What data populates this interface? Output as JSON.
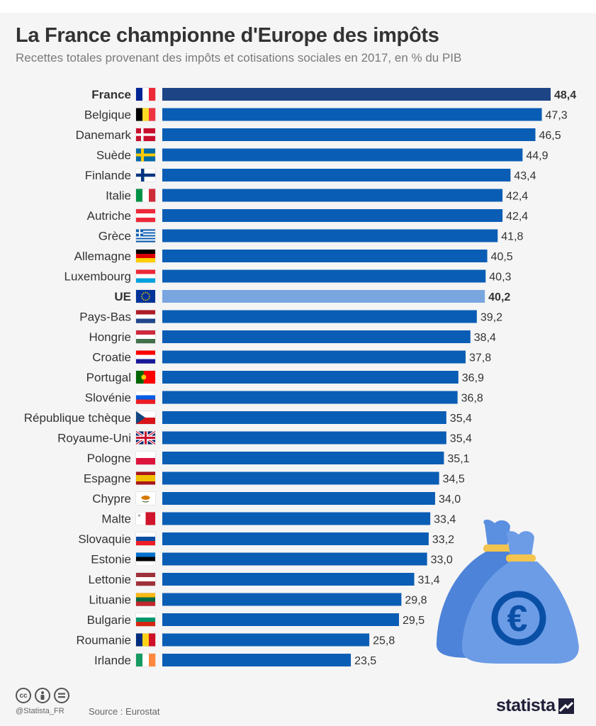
{
  "header": {
    "title": "La France championne d'Europe des impôts",
    "subtitle": "Recettes totales provenant des impôts et cotisations sociales en 2017, en % du PIB"
  },
  "chart_data": {
    "type": "bar",
    "orientation": "horizontal",
    "title": "La France championne d'Europe des impôts",
    "subtitle": "Recettes totales provenant des impôts et cotisations sociales en 2017, en % du PIB",
    "categories": [
      "France",
      "Belgique",
      "Danemark",
      "Suède",
      "Finlande",
      "Italie",
      "Autriche",
      "Grèce",
      "Allemagne",
      "Luxembourg",
      "UE",
      "Pays-Bas",
      "Hongrie",
      "Croatie",
      "Portugal",
      "Slovénie",
      "République tchèque",
      "Royaume-Uni",
      "Pologne",
      "Espagne",
      "Chypre",
      "Malte",
      "Slovaquie",
      "Estonie",
      "Lettonie",
      "Lituanie",
      "Bulgarie",
      "Roumanie",
      "Irlande"
    ],
    "values": [
      48.4,
      47.3,
      46.5,
      44.9,
      43.4,
      42.4,
      42.4,
      41.8,
      40.5,
      40.3,
      40.2,
      39.2,
      38.4,
      37.8,
      36.9,
      36.8,
      35.4,
      35.4,
      35.1,
      34.5,
      34.0,
      33.4,
      33.2,
      33.0,
      31.4,
      29.8,
      29.5,
      25.8,
      23.5
    ],
    "value_labels": [
      "48,4",
      "47,3",
      "46,5",
      "44,9",
      "43,4",
      "42,4",
      "42,4",
      "41,8",
      "40,5",
      "40,3",
      "40,2",
      "39,2",
      "38,4",
      "37,8",
      "36,9",
      "36,8",
      "35,4",
      "35,4",
      "35,1",
      "34,5",
      "34,0",
      "33,4",
      "33,2",
      "33,0",
      "31,4",
      "29,8",
      "29,5",
      "25,8",
      "23,5"
    ],
    "highlighted": [
      "France",
      "UE"
    ],
    "xlim": [
      0,
      48.4
    ],
    "grid": false,
    "legend": "none",
    "colors": {
      "highlight_bar": "#1d4585",
      "default_bar": "#0a5db4",
      "eu_bar": "#7aa6e0",
      "label_text": "#333333",
      "value_text": "#333333"
    },
    "flags": {
      "France": "flag-france-icon",
      "Belgique": "flag-belgium-icon",
      "Danemark": "flag-denmark-icon",
      "Suède": "flag-sweden-icon",
      "Finlande": "flag-finland-icon",
      "Italie": "flag-italy-icon",
      "Autriche": "flag-austria-icon",
      "Grèce": "flag-greece-icon",
      "Allemagne": "flag-germany-icon",
      "Luxembourg": "flag-luxembourg-icon",
      "UE": "flag-eu-icon",
      "Pays-Bas": "flag-netherlands-icon",
      "Hongrie": "flag-hungary-icon",
      "Croatie": "flag-croatia-icon",
      "Portugal": "flag-portugal-icon",
      "Slovénie": "flag-slovenia-icon",
      "République tchèque": "flag-czechia-icon",
      "Royaume-Uni": "flag-uk-icon",
      "Pologne": "flag-poland-icon",
      "Espagne": "flag-spain-icon",
      "Chypre": "flag-cyprus-icon",
      "Malte": "flag-malta-icon",
      "Slovaquie": "flag-slovakia-icon",
      "Estonie": "flag-estonia-icon",
      "Lettonie": "flag-latvia-icon",
      "Lituanie": "flag-lithuania-icon",
      "Bulgarie": "flag-bulgaria-icon",
      "Roumanie": "flag-romania-icon",
      "Irlande": "flag-ireland-icon"
    }
  },
  "decoration": {
    "icon": "money-bag-euro-icon",
    "symbol": "€",
    "bag_color": "#5b8fe0",
    "tie_color": "#f3c44e",
    "symbol_color": "#0a4fa6"
  },
  "footer": {
    "license_icons": [
      "cc-icon",
      "by-icon",
      "nd-icon"
    ],
    "handle": "@Statista_FR",
    "source": "Source : Eurostat",
    "brand": "statista"
  }
}
